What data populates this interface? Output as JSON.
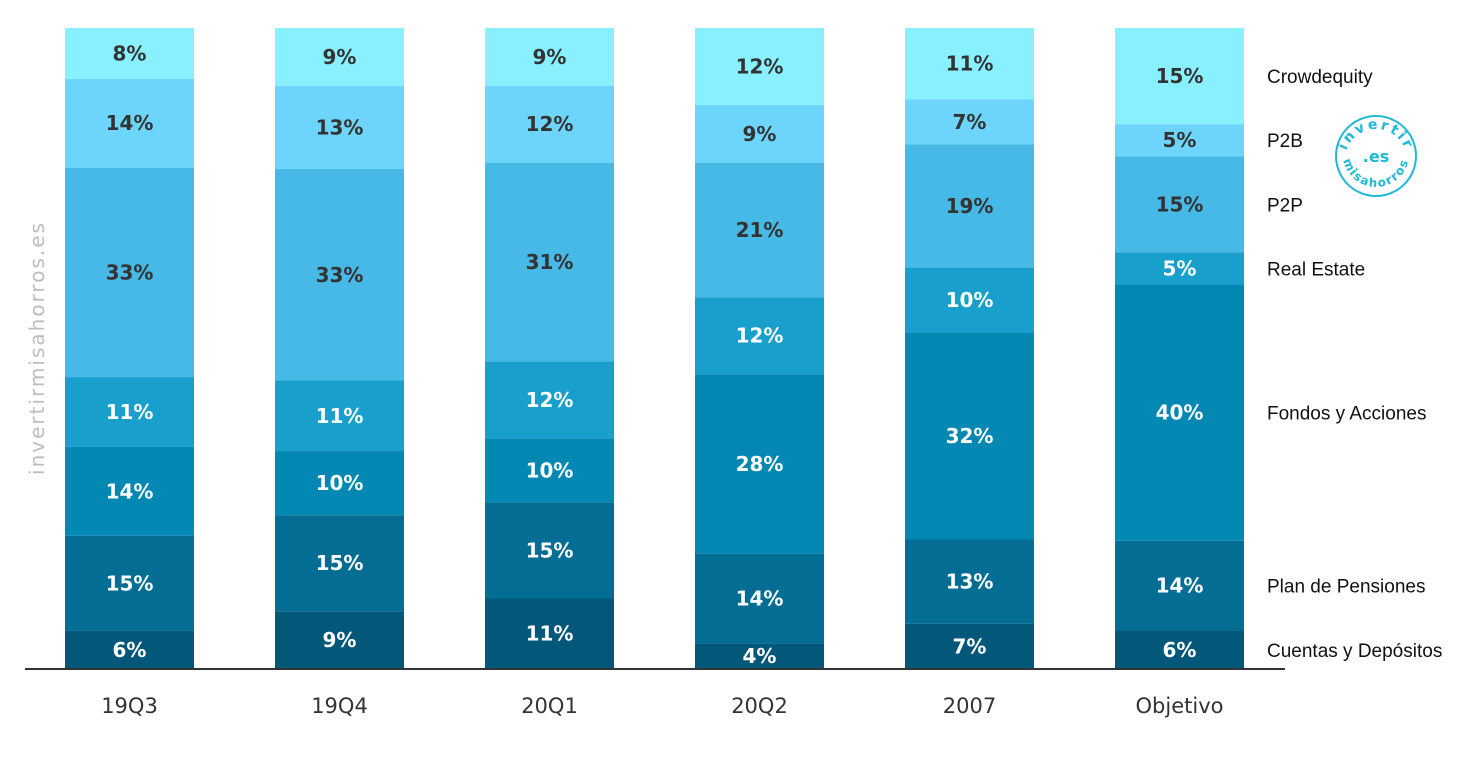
{
  "chart_data": {
    "type": "bar",
    "stacked": true,
    "normalized": true,
    "categories": [
      "19Q3",
      "19Q4",
      "20Q1",
      "20Q2",
      "2007",
      "Objetivo"
    ],
    "series": [
      {
        "name": "Cuentas y Depósitos",
        "color": "#03587a",
        "values": [
          6,
          9,
          11,
          4,
          7,
          6
        ],
        "labels": [
          "6%",
          "9%",
          "11%",
          "4%",
          "7%",
          "6%"
        ]
      },
      {
        "name": "Plan de Pensiones",
        "color": "#036d94",
        "values": [
          15,
          15,
          15,
          14,
          13,
          14
        ],
        "labels": [
          "15%",
          "15%",
          "15%",
          "14%",
          "13%",
          "14%"
        ]
      },
      {
        "name": "Fondos y Acciones",
        "color": "#0388b3",
        "values": [
          14,
          10,
          10,
          28,
          32,
          40
        ],
        "labels": [
          "14%",
          "10%",
          "10%",
          "28%",
          "32%",
          "40%"
        ]
      },
      {
        "name": "Real Estate",
        "color": "#199fcb",
        "values": [
          11,
          11,
          12,
          12,
          10,
          5
        ],
        "labels": [
          "11%",
          "11%",
          "12%",
          "12%",
          "10%",
          "5%"
        ]
      },
      {
        "name": "P2P",
        "color": "#47b9e6",
        "values": [
          33,
          33,
          31,
          21,
          19,
          15
        ],
        "labels": [
          "33%",
          "33%",
          "31%",
          "21%",
          "19%",
          "15%"
        ]
      },
      {
        "name": "P2B",
        "color": "#6dd5fb",
        "values": [
          14,
          13,
          12,
          9,
          7,
          5
        ],
        "labels": [
          "14%",
          "13%",
          "12%",
          "9%",
          "7%",
          "5%"
        ]
      },
      {
        "name": "Crowdequity",
        "color": "#89f0ff",
        "values": [
          8,
          9,
          9,
          12,
          11,
          15
        ],
        "labels": [
          "8%",
          "9%",
          "9%",
          "12%",
          "11%",
          "15%"
        ]
      }
    ],
    "legend_position": "right",
    "grid": false
  },
  "watermark": "invertirmisahorros.es",
  "logo": {
    "top": "invertir",
    "middle": ".es",
    "bottom": "misahorros"
  }
}
